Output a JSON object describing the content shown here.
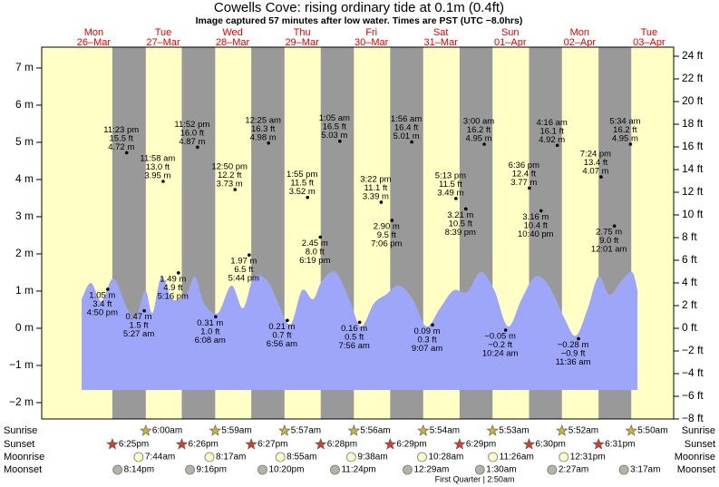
{
  "chart_data": {
    "type": "tide",
    "title": "Cowells Cove: rising  ordinary tide at 0.1m (0.4ft)",
    "subtitle": "Image captured 57 minutes after low water. Times are PST (UTC −8.0hrs)",
    "day_name_color": "#e00000",
    "day_color": "#ffffc6",
    "night_color": "#999999",
    "days": [
      {
        "name": "Mon",
        "date": "26–Mar"
      },
      {
        "name": "Tue",
        "date": "27–Mar"
      },
      {
        "name": "Wed",
        "date": "28–Mar"
      },
      {
        "name": "Thu",
        "date": "29–Mar"
      },
      {
        "name": "Fri",
        "date": "30–Mar"
      },
      {
        "name": "Sat",
        "date": "31–Mar"
      },
      {
        "name": "Sun",
        "date": "01–Apr"
      },
      {
        "name": "Mon",
        "date": "02–Apr"
      },
      {
        "name": "Tue",
        "date": "03–Apr"
      }
    ],
    "xlim": [
      -6,
      212.5
    ],
    "ylim": [
      -2.44,
      7.56
    ],
    "yticks": [
      {
        "value": 7,
        "label": "7 m"
      },
      {
        "value": 6,
        "label": "6 m"
      },
      {
        "value": 5,
        "label": "5 m"
      },
      {
        "value": 4,
        "label": "4 m"
      },
      {
        "value": 3,
        "label": "3 m"
      },
      {
        "value": 2,
        "label": "2 m"
      },
      {
        "value": 1,
        "label": "1 m"
      },
      {
        "value": 0,
        "label": "0 m"
      },
      {
        "value": -1,
        "label": "−1 m"
      },
      {
        "value": -2,
        "label": "−2 m"
      }
    ],
    "y2lim": [
      -8.0,
      24.8
    ],
    "y2ticks": [
      {
        "value": 24,
        "label": "24 ft"
      },
      {
        "value": 22,
        "label": "22 ft"
      },
      {
        "value": 20,
        "label": "20 ft"
      },
      {
        "value": 18,
        "label": "18 ft"
      },
      {
        "value": 16,
        "label": "16 ft"
      },
      {
        "value": 14,
        "label": "14 ft"
      },
      {
        "value": 12,
        "label": "12 ft"
      },
      {
        "value": 10,
        "label": "10 ft"
      },
      {
        "value": 8,
        "label": "8 ft"
      },
      {
        "value": 6,
        "label": "6 ft"
      },
      {
        "value": 4,
        "label": "4 ft"
      },
      {
        "value": 2,
        "label": "2 ft"
      },
      {
        "value": 0,
        "label": "0 ft"
      },
      {
        "value": -2,
        "label": "−2 ft"
      },
      {
        "value": -4,
        "label": "−4 ft"
      },
      {
        "value": -6,
        "label": "−6 ft"
      },
      {
        "value": -8,
        "label": "−8 ft"
      }
    ],
    "area": {
      "color": "#9ea6fa",
      "x": [
        7.8,
        11.0,
        14.7,
        18.8,
        23.5,
        26.6,
        29.8,
        32.3,
        35.4,
        39.2,
        43.9,
        47.0,
        50.2,
        54.9,
        59.6,
        63.6,
        67.4,
        72.1,
        75.2,
        79.9,
        84.0,
        87.8,
        90.9,
        95.6,
        100.3,
        104.4,
        108.8,
        112.9,
        117.6,
        122.3,
        127.0,
        131.7,
        136.4,
        141.1,
        145.8,
        150.5,
        155.2,
        159.9,
        164.6,
        169.3,
        174.6,
        178.7,
        182.8,
        186.5,
        190.3,
        194.4,
        198.1,
        200.0
      ],
      "values": [
        0.78,
        1.22,
        0.73,
        1.34,
        0.54,
        0.29,
        1.02,
        0.41,
        1.39,
        0.78,
        0.9,
        1.39,
        0.66,
        0.41,
        1.15,
        0.54,
        1.39,
        1.27,
        0.78,
        0.1,
        1.02,
        0.78,
        1.27,
        1.51,
        0.78,
        0.05,
        0.66,
        0.9,
        1.15,
        0.78,
        0.05,
        0.54,
        1.02,
        0.98,
        1.51,
        1.02,
        0.05,
        0.78,
        1.39,
        1.15,
        0.29,
        -0.2,
        0.54,
        1.39,
        0.9,
        1.27,
        1.51,
        1.02
      ]
    },
    "tides": [
      {
        "x": 16.83,
        "y": 1.05,
        "m": "1.05 m",
        "ft": "3.4 ft",
        "time": "4:50 pm"
      },
      {
        "x": 23.38,
        "y": 4.72,
        "m": "4.72 m",
        "ft": "15.5 ft",
        "time": "11:23 pm"
      },
      {
        "x": 29.45,
        "y": 0.47,
        "m": "0.47 m",
        "ft": "1.5 ft",
        "time": "5:27 am"
      },
      {
        "x": 35.97,
        "y": 3.95,
        "m": "3.95 m",
        "ft": "13.0 ft",
        "time": "11:58 am"
      },
      {
        "x": 41.27,
        "y": 1.49,
        "m": "1.49 m",
        "ft": "4.9 ft",
        "time": "5:16 pm"
      },
      {
        "x": 47.87,
        "y": 4.87,
        "m": "4.87 m",
        "ft": "16.0 ft",
        "time": "11:52 pm"
      },
      {
        "x": 54.13,
        "y": 0.31,
        "m": "0.31 m",
        "ft": "1.0 ft",
        "time": "6:08 am"
      },
      {
        "x": 60.83,
        "y": 3.73,
        "m": "3.73 m",
        "ft": "12.2 ft",
        "time": "12:50 pm"
      },
      {
        "x": 65.73,
        "y": 1.97,
        "m": "1.97 m",
        "ft": "6.5 ft",
        "time": "5:44 pm"
      },
      {
        "x": 72.42,
        "y": 4.98,
        "m": "4.98 m",
        "ft": "16.3 ft",
        "time": "12:25 am"
      },
      {
        "x": 78.93,
        "y": 0.21,
        "m": "0.21 m",
        "ft": "0.7 ft",
        "time": "6:56 am"
      },
      {
        "x": 85.92,
        "y": 3.52,
        "m": "3.52 m",
        "ft": "11.5 ft",
        "time": "1:55 pm"
      },
      {
        "x": 90.32,
        "y": 2.45,
        "m": "2.45 m",
        "ft": "8.0 ft",
        "time": "6:19 pm"
      },
      {
        "x": 97.08,
        "y": 5.03,
        "m": "5.03 m",
        "ft": "16.5 ft",
        "time": "1:05 am"
      },
      {
        "x": 103.93,
        "y": 0.16,
        "m": "0.16 m",
        "ft": "0.5 ft",
        "time": "7:56 am"
      },
      {
        "x": 111.37,
        "y": 3.39,
        "m": "3.39 m",
        "ft": "11.1 ft",
        "time": "3:22 pm"
      },
      {
        "x": 115.1,
        "y": 2.9,
        "m": "2.90 m",
        "ft": "9.5 ft",
        "time": "7:06 pm"
      },
      {
        "x": 121.93,
        "y": 5.01,
        "m": "5.01 m",
        "ft": "16.4 ft",
        "time": "1:56 am"
      },
      {
        "x": 129.12,
        "y": 0.09,
        "m": "0.09 m",
        "ft": "0.3 ft",
        "time": "9:07 am"
      },
      {
        "x": 137.22,
        "y": 3.49,
        "m": "3.49 m",
        "ft": "11.5 ft",
        "time": "5:13 pm"
      },
      {
        "x": 140.65,
        "y": 3.21,
        "m": "3.21 m",
        "ft": "10.5 ft",
        "time": "8:39 pm"
      },
      {
        "x": 147.0,
        "y": 4.95,
        "m": "4.95 m",
        "ft": "16.2 ft",
        "time": "3:00 am"
      },
      {
        "x": 154.4,
        "y": -0.05,
        "m": "−0.05 m",
        "ft": "−0.2 ft",
        "time": "10:24 am"
      },
      {
        "x": 162.6,
        "y": 3.77,
        "m": "3.77 m",
        "ft": "12.4 ft",
        "time": "6:36 pm"
      },
      {
        "x": 166.67,
        "y": 3.16,
        "m": "3.16 m",
        "ft": "10.4 ft",
        "time": "10:40 pm"
      },
      {
        "x": 172.27,
        "y": 4.92,
        "m": "4.92 m",
        "ft": "16.1 ft",
        "time": "4:16 am"
      },
      {
        "x": 179.6,
        "y": -0.28,
        "m": "−0.28 m",
        "ft": "−0.9 ft",
        "time": "11:36 am"
      },
      {
        "x": 187.4,
        "y": 4.07,
        "m": "4.07 m",
        "ft": "13.4 ft",
        "time": "7:24 pm"
      },
      {
        "x": 192.02,
        "y": 2.75,
        "m": "2.75 m",
        "ft": "9.0 ft",
        "time": "12:01 am"
      },
      {
        "x": 197.57,
        "y": 4.95,
        "m": "4.95 m",
        "ft": "16.2 ft",
        "time": "5:34 am"
      }
    ],
    "sunset": {
      "label": "Sunset",
      "color": "#d0402c",
      "events": [
        {
          "x": 18.42,
          "time": "6:25pm"
        },
        {
          "x": 42.43,
          "time": "6:26pm"
        },
        {
          "x": 66.45,
          "time": "6:27pm"
        },
        {
          "x": 90.47,
          "time": "6:28pm"
        },
        {
          "x": 114.48,
          "time": "6:29pm"
        },
        {
          "x": 138.48,
          "time": "6:29pm"
        },
        {
          "x": 162.5,
          "time": "6:30pm"
        },
        {
          "x": 186.52,
          "time": "6:31pm"
        }
      ]
    },
    "sunrise": {
      "label": "Sunrise",
      "color": "#c8b43a",
      "events": [
        {
          "x": 30.0,
          "time": "6:00am"
        },
        {
          "x": 53.98,
          "time": "5:59am"
        },
        {
          "x": 77.95,
          "time": "5:57am"
        },
        {
          "x": 101.93,
          "time": "5:56am"
        },
        {
          "x": 125.9,
          "time": "5:54am"
        },
        {
          "x": 149.88,
          "time": "5:53am"
        },
        {
          "x": 173.87,
          "time": "5:52am"
        },
        {
          "x": 197.83,
          "time": "5:50am"
        }
      ]
    },
    "moonrise": {
      "label": "Moonrise",
      "color": "#ffffc8",
      "events": [
        {
          "x": 27.5,
          "time": "7:44am"
        },
        {
          "x": 52.0,
          "time": "8:17am"
        },
        {
          "x": 76.5,
          "time": "8:55am"
        },
        {
          "x": 101.0,
          "time": "9:38am"
        },
        {
          "x": 125.5,
          "time": "10:28am"
        },
        {
          "x": 150.0,
          "time": "11:26am"
        },
        {
          "x": 174.5,
          "time": "12:31pm"
        }
      ]
    },
    "moonset": {
      "label": "Moonset",
      "color": "#b4b4a4",
      "events": [
        {
          "x": 20.23,
          "time": "8:14pm"
        },
        {
          "x": 45.27,
          "time": "9:16pm"
        },
        {
          "x": 70.33,
          "time": "10:20pm"
        },
        {
          "x": 95.4,
          "time": "11:24pm"
        },
        {
          "x": 120.48,
          "time": "12:29am"
        },
        {
          "x": 145.5,
          "time": "1:30am"
        },
        {
          "x": 170.45,
          "time": "2:27am"
        },
        {
          "x": 195.28,
          "time": "3:17am"
        }
      ]
    },
    "moon_phase": {
      "text": "First Quarter | 2:50am",
      "x": 146.83
    }
  }
}
